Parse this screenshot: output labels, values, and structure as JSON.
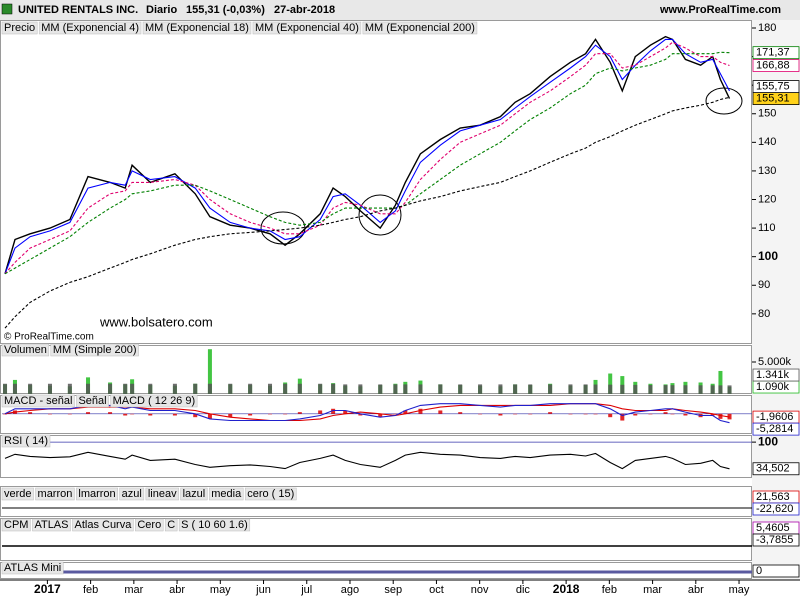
{
  "header": {
    "symbol": "UNITED RENTALS INC.",
    "period": "Diario",
    "quote": "155,31 (-0,03%)",
    "date": "27-abr-2018",
    "site": "www.ProRealTime.com"
  },
  "watermark": "www.bolsatero.com",
  "copyright": "© ProRealTime.com",
  "chart_data": [
    {
      "type": "line",
      "xlim": [
        -1.05,
        16.3
      ],
      "x": [
        -0.98,
        -0.75,
        -0.4,
        0.06,
        0.52,
        0.94,
        1.45,
        1.8,
        1.96,
        2.38,
        2.95,
        3.42,
        3.76,
        4.23,
        4.69,
        5.15,
        5.5,
        5.84,
        6.31,
        6.61,
        6.89,
        7.24,
        7.7,
        8.05,
        8.28,
        8.63,
        9.09,
        9.55,
        10.01,
        10.48,
        10.82,
        11.17,
        11.63,
        12.1,
        12.45,
        12.68,
        13.02,
        13.3,
        13.6,
        13.95,
        14.3,
        14.46,
        14.76,
        15.11,
        15.39,
        15.57,
        15.78
      ],
      "xticks": [
        {
          "value": 0,
          "label": "2017"
        },
        {
          "value": 1,
          "label": "feb"
        },
        {
          "value": 2,
          "label": "mar"
        },
        {
          "value": 3,
          "label": "abr"
        },
        {
          "value": 4,
          "label": "may"
        },
        {
          "value": 5,
          "label": "jun"
        },
        {
          "value": 6,
          "label": "jul"
        },
        {
          "value": 7,
          "label": "ago"
        },
        {
          "value": 8,
          "label": "sep"
        },
        {
          "value": 9,
          "label": "oct"
        },
        {
          "value": 10,
          "label": "nov"
        },
        {
          "value": 11,
          "label": "dic"
        },
        {
          "value": 12,
          "label": "2018"
        },
        {
          "value": 13,
          "label": "feb"
        },
        {
          "value": 14,
          "label": "mar"
        },
        {
          "value": 15,
          "label": "abr"
        },
        {
          "value": 16,
          "label": "may"
        }
      ],
      "ylim": [
        69.8,
        181.4
      ],
      "yticks": [
        80,
        90,
        100,
        110,
        120,
        130,
        140,
        150,
        160,
        170,
        180
      ],
      "series": [
        {
          "name": "Precio",
          "color": "#000000",
          "values": [
            94,
            106,
            108,
            110,
            113,
            128,
            126,
            124,
            132,
            126,
            129,
            122,
            114,
            111,
            110,
            108,
            104,
            108,
            115,
            124,
            121,
            116,
            110,
            118,
            126,
            136,
            141,
            145,
            146,
            149,
            154,
            157,
            163,
            168,
            171,
            176,
            168,
            158,
            170,
            174,
            177,
            176,
            169,
            167,
            170,
            162,
            155.31
          ],
          "last_label": "155,31"
        },
        {
          "name": "MM (Exponencial 4)",
          "color": "#0000ff",
          "values": [
            94,
            103,
            107,
            109,
            112,
            124,
            126,
            125,
            130,
            127,
            128,
            124,
            117,
            112,
            110,
            109,
            106,
            107,
            113,
            121,
            122,
            118,
            112,
            116,
            123,
            133,
            139,
            144,
            146,
            148,
            152,
            156,
            161,
            166,
            170,
            174,
            170,
            162,
            167,
            172,
            176,
            176,
            171,
            168,
            169,
            164,
            158
          ]
        },
        {
          "name": "MM (Exponencial 18)",
          "color": "#e0006e",
          "dashed": true,
          "values": [
            94,
            98,
            103,
            106,
            109,
            117,
            122,
            123,
            126,
            126,
            127,
            125,
            120,
            115,
            112,
            110,
            108,
            108,
            111,
            117,
            119,
            118,
            115,
            115,
            119,
            127,
            134,
            140,
            143,
            146,
            150,
            154,
            158,
            163,
            167,
            171,
            171,
            166,
            167,
            170,
            173,
            175,
            173,
            170,
            170,
            168,
            166.88
          ],
          "last_label": "166,88"
        },
        {
          "name": "MM (Exponencial 40)",
          "color": "#008000",
          "dashed": true,
          "values": [
            94,
            96,
            99,
            103,
            107,
            112,
            117,
            120,
            122,
            123,
            125,
            125,
            123,
            120,
            117,
            114,
            112,
            111,
            112,
            115,
            117,
            117,
            117,
            117,
            118,
            122,
            127,
            132,
            136,
            140,
            144,
            148,
            152,
            157,
            160,
            164,
            166,
            165,
            166,
            167,
            169,
            171,
            171,
            171,
            171,
            171.5,
            171.37
          ],
          "last_label": "171,37"
        },
        {
          "name": "MM (Exponencial 200)",
          "color": "#000000",
          "dashed": true,
          "values": [
            75,
            79,
            84,
            88,
            91,
            93,
            96,
            98,
            99,
            101,
            104,
            106,
            107,
            108,
            108.5,
            109,
            109.5,
            110,
            111,
            112,
            113,
            114,
            116,
            117,
            118,
            119.5,
            121,
            123,
            124.5,
            126,
            128,
            130,
            133,
            136,
            138,
            140,
            142,
            144,
            146,
            148,
            150,
            151,
            152,
            153,
            154,
            155,
            155.75
          ],
          "last_label": "155,75"
        }
      ]
    },
    {
      "type": "bar",
      "ylim": [
        0,
        7500
      ],
      "yticks": [
        {
          "value": 5000,
          "label": "5.000k"
        }
      ],
      "series": [
        {
          "name": "Volumen",
          "color": "#22bb22",
          "type": "bar",
          "values": [
            1500,
            2200,
            1400,
            1300,
            1200,
            2600,
            1800,
            1500,
            2300,
            1400,
            1300,
            1600,
            7000,
            1500,
            1400,
            1300,
            1800,
            2400,
            1500,
            1700,
            1300,
            1200,
            1400,
            1600,
            1900,
            2100,
            1500,
            1400,
            1300,
            1200,
            1500,
            1400,
            1600,
            1300,
            1400,
            2200,
            3200,
            2800,
            1900,
            1600,
            1500,
            1700,
            1900,
            1800,
            1600,
            3600,
            1090
          ],
          "last_label": "1.090k"
        },
        {
          "name": "MM (Simple 200)",
          "color": "#555555",
          "dashed": true,
          "values": [
            1600,
            1600,
            1600,
            1600,
            1600,
            1600,
            1600,
            1600,
            1600,
            1600,
            1600,
            1600,
            1600,
            1600,
            1600,
            1600,
            1600,
            1600,
            1600,
            1600,
            1500,
            1500,
            1500,
            1500,
            1500,
            1500,
            1500,
            1500,
            1500,
            1500,
            1500,
            1500,
            1500,
            1500,
            1500,
            1480,
            1460,
            1440,
            1420,
            1400,
            1390,
            1380,
            1370,
            1360,
            1355,
            1348,
            1341
          ],
          "last_label": "1.341k"
        }
      ]
    },
    {
      "type": "line",
      "ylim": [
        -12,
        10
      ],
      "yticks": [],
      "series": [
        {
          "name": "MACD - señal",
          "color": "#dd0000",
          "type": "bar",
          "values": [
            0,
            2,
            1,
            0,
            0,
            1,
            1,
            -1,
            0,
            -1,
            -1,
            -2,
            -3,
            -2,
            -1,
            0,
            0,
            1,
            2,
            3,
            2,
            -1,
            -2,
            0,
            2,
            3,
            2,
            1,
            0,
            -1,
            0,
            0,
            1,
            0,
            0,
            0,
            -2,
            -4,
            -1,
            0,
            1,
            0,
            -1,
            -2,
            -1,
            -3,
            -3.3208
          ]
        },
        {
          "name": "Señal",
          "color": "#dd0000",
          "values": [
            0,
            1,
            2,
            3,
            3,
            4,
            4,
            4,
            4,
            3,
            3,
            2,
            0,
            -2,
            -3,
            -4,
            -4,
            -4,
            -3,
            -1,
            0,
            1,
            0,
            -1,
            0,
            2,
            4,
            5,
            5,
            5,
            5,
            5,
            5,
            6,
            6,
            6,
            5,
            3,
            2,
            2,
            2,
            3,
            2,
            1,
            0,
            -1,
            -1.9606
          ],
          "last_label": "-1,9606"
        },
        {
          "name": "MACD ( 12 26 9)",
          "color": "#2020cc",
          "values": [
            0,
            3,
            3,
            3,
            3,
            5,
            5,
            3,
            4,
            2,
            2,
            0,
            -3,
            -4,
            -4,
            -4,
            -4,
            -3,
            -1,
            2,
            2,
            0,
            -2,
            -1,
            2,
            5,
            6,
            6,
            5,
            4,
            5,
            5,
            6,
            6,
            6,
            6,
            3,
            -1,
            1,
            2,
            3,
            3,
            1,
            -1,
            -1,
            -4,
            -5.2814
          ],
          "last_label": "-5,2814"
        }
      ]
    },
    {
      "type": "line",
      "ylim": [
        11.8,
        112.6
      ],
      "yticks": [
        100
      ],
      "series": [
        {
          "name": "RSI ( 14)",
          "color": "#000000",
          "values": [
            60,
            70,
            65,
            62,
            64,
            75,
            65,
            58,
            68,
            55,
            58,
            45,
            38,
            42,
            44,
            40,
            35,
            50,
            60,
            68,
            55,
            45,
            38,
            55,
            68,
            75,
            70,
            68,
            62,
            60,
            65,
            62,
            68,
            70,
            66,
            72,
            50,
            35,
            55,
            60,
            65,
            60,
            45,
            48,
            55,
            40,
            34.502
          ],
          "last_label": "34,502"
        }
      ]
    }
  ],
  "indicators": [
    {
      "labels": [
        "verde",
        "marron",
        "lmarron",
        "azul",
        "lineav",
        "lazul",
        "media",
        "cero ( 15)"
      ],
      "readouts": [
        "21,563",
        "-22,620"
      ]
    },
    {
      "labels": [
        "CPM",
        "ATLAS",
        "Atlas Curva",
        "Cero",
        "C",
        "S ( 10 60 1.6)"
      ],
      "readouts": [
        "5,4605",
        "-3,7855"
      ]
    },
    {
      "labels": [
        "ATLAS Mini"
      ],
      "readouts": [
        "0"
      ]
    }
  ]
}
